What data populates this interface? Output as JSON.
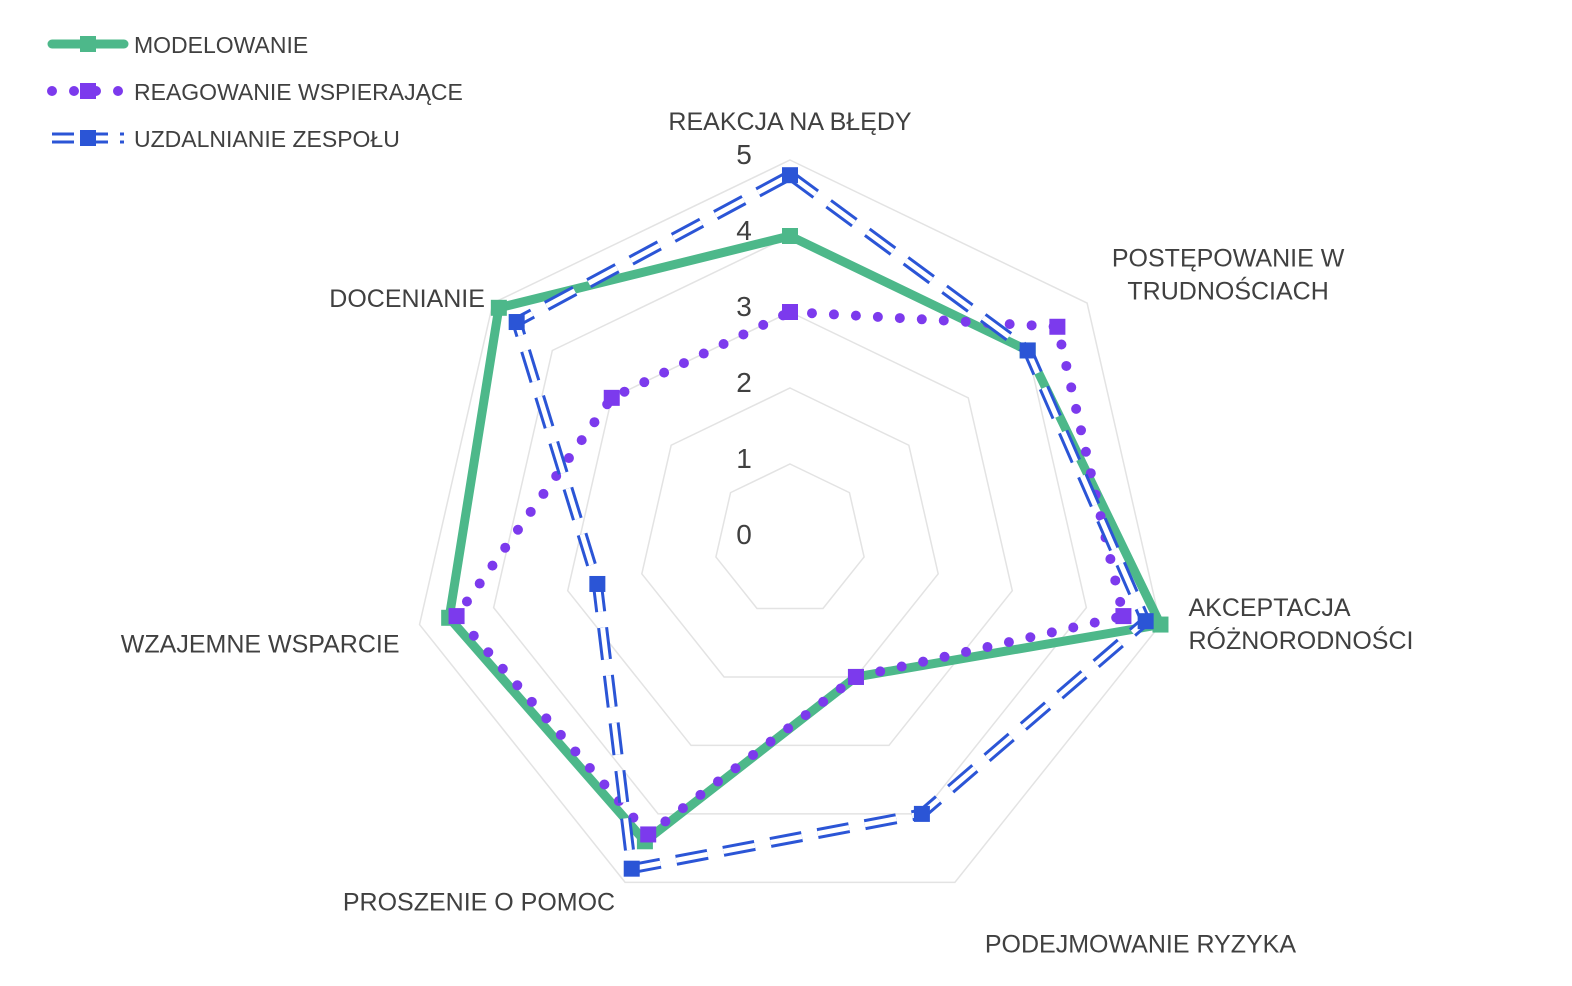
{
  "chart_data": {
    "type": "radar",
    "axes": [
      "REAKCJA NA BŁĘDY",
      "POSTĘPOWANIE W TRUDNOŚCIACH",
      "AKCEPTACJA RÓŻNORODNOŚCI",
      "PODEJMOWANIE RYZYKA",
      "PROSZENIE O POMOC",
      "WZAJEMNE WSPARCIE",
      "DOCENIANIE"
    ],
    "axis_label_lines": [
      [
        "REAKCJA NA BŁĘDY"
      ],
      [
        "POSTĘPOWANIE W",
        "TRUDNOŚCIACH"
      ],
      [
        "AKCEPTACJA",
        "RÓŻNORODNOŚCI"
      ],
      [
        "PODEJMOWANIE RYZYKA"
      ],
      [
        "PROSZENIE O POMOC"
      ],
      [
        "WZAJEMNE WSPARCIE"
      ],
      [
        "DOCENIANIE"
      ]
    ],
    "rlim": [
      0,
      5
    ],
    "ticks": [
      "0",
      "1",
      "2",
      "3",
      "4",
      "5"
    ],
    "grid": true,
    "legend_position": "top-left",
    "series": [
      {
        "name": "MODELOWANIE",
        "values": [
          4.0,
          4.0,
          5.0,
          2.0,
          4.4,
          4.6,
          4.9
        ],
        "color": "#4db88a",
        "style": "solid"
      },
      {
        "name": "REAGOWANIE WSPIERAJĄCE",
        "values": [
          3.0,
          4.5,
          4.5,
          2.0,
          4.3,
          4.5,
          3.0
        ],
        "color": "#7c3aed",
        "style": "dotted"
      },
      {
        "name": "UZDALNIANIE ZESPOŁU",
        "values": [
          4.8,
          4.0,
          4.8,
          4.0,
          4.8,
          2.6,
          4.6
        ],
        "color": "#2b55d6",
        "style": "dashed"
      }
    ]
  }
}
